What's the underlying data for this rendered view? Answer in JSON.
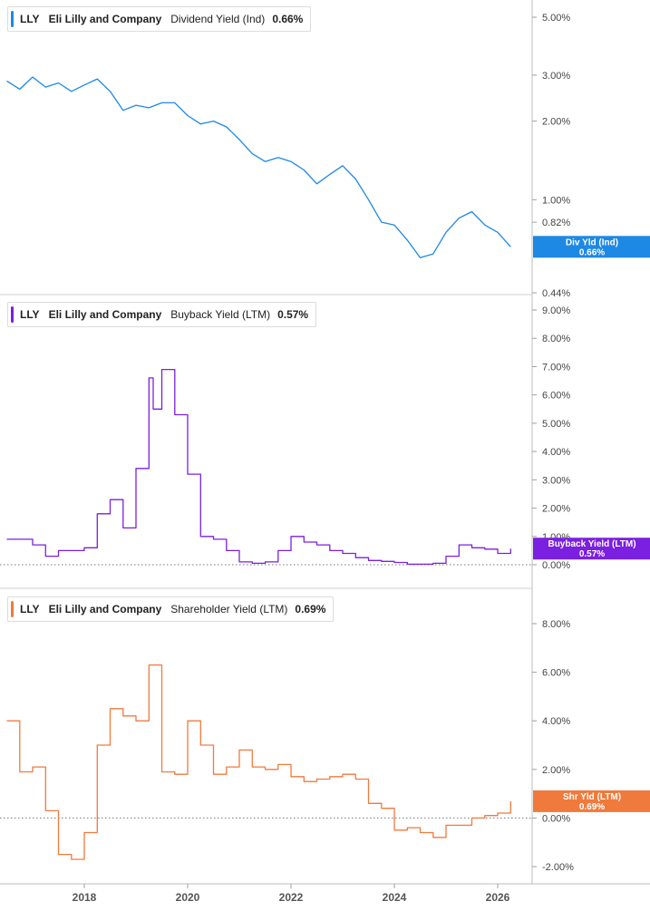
{
  "x_axis": {
    "ticks": [
      "2018",
      "2020",
      "2022",
      "2024",
      "2026"
    ]
  },
  "chart_data": [
    {
      "type": "line",
      "ticker": "LLY",
      "company": "Eli Lilly and Company",
      "metric": "Dividend Yield (Ind)",
      "value_label": "0.66%",
      "color": "#1e88e5",
      "flag": {
        "name": "Div Yld (Ind)",
        "value": "0.66%"
      },
      "y_scale": "log",
      "y_ticks": [
        "5.00%",
        "3.00%",
        "2.00%",
        "1.00%",
        "0.82%",
        "0.44%"
      ],
      "y_tick_values": [
        5.0,
        3.0,
        2.0,
        1.0,
        0.82,
        0.44
      ],
      "ylim": [
        0.44,
        5.8
      ],
      "zero_line": false,
      "series": [
        {
          "x": [
            "2016-07",
            "2016-10",
            "2017-01",
            "2017-04",
            "2017-07",
            "2017-10",
            "2018-01",
            "2018-04",
            "2018-07",
            "2018-10",
            "2019-01",
            "2019-04",
            "2019-07",
            "2019-10",
            "2020-01",
            "2020-04",
            "2020-07",
            "2020-10",
            "2021-01",
            "2021-04",
            "2021-07",
            "2021-10",
            "2022-01",
            "2022-04",
            "2022-07",
            "2022-10",
            "2023-01",
            "2023-04",
            "2023-07",
            "2023-10",
            "2024-01",
            "2024-04",
            "2024-07",
            "2024-10",
            "2025-01",
            "2025-04",
            "2025-07",
            "2025-10",
            "2026-01",
            "2026-04"
          ],
          "values": [
            2.85,
            2.65,
            2.95,
            2.7,
            2.8,
            2.6,
            2.75,
            2.9,
            2.6,
            2.2,
            2.3,
            2.25,
            2.35,
            2.35,
            2.1,
            1.95,
            2.0,
            1.9,
            1.7,
            1.5,
            1.4,
            1.45,
            1.4,
            1.3,
            1.15,
            1.25,
            1.35,
            1.2,
            1.0,
            0.82,
            0.8,
            0.7,
            0.6,
            0.62,
            0.75,
            0.85,
            0.9,
            0.8,
            0.75,
            0.66
          ]
        }
      ]
    },
    {
      "type": "line",
      "ticker": "LLY",
      "company": "Eli Lilly and Company",
      "metric": "Buyback Yield (LTM)",
      "value_label": "0.57%",
      "color": "#7b1fe0",
      "flag": {
        "name": "Buyback Yield (LTM)",
        "value": "0.57%"
      },
      "y_scale": "linear",
      "y_ticks": [
        "9.00%",
        "8.00%",
        "7.00%",
        "6.00%",
        "5.00%",
        "4.00%",
        "3.00%",
        "2.00%",
        "1.00%",
        "0.00%"
      ],
      "y_tick_values": [
        9,
        8,
        7,
        6,
        5,
        4,
        3,
        2,
        1,
        0
      ],
      "ylim": [
        0,
        9.3
      ],
      "zero_line": true,
      "series": [
        {
          "x": [
            "2016-07",
            "2017-01",
            "2017-04",
            "2017-07",
            "2017-10",
            "2018-01",
            "2018-04",
            "2018-07",
            "2018-10",
            "2019-01",
            "2019-04",
            "2019-05",
            "2019-07",
            "2019-10",
            "2020-01",
            "2020-04",
            "2020-07",
            "2020-10",
            "2021-01",
            "2021-04",
            "2021-07",
            "2021-10",
            "2022-01",
            "2022-04",
            "2022-07",
            "2022-10",
            "2023-01",
            "2023-04",
            "2023-07",
            "2023-10",
            "2024-01",
            "2024-04",
            "2024-07",
            "2024-10",
            "2025-01",
            "2025-04",
            "2025-07",
            "2025-10",
            "2026-01",
            "2026-04"
          ],
          "values": [
            0.9,
            0.7,
            0.3,
            0.5,
            0.5,
            0.6,
            1.8,
            2.3,
            1.3,
            3.4,
            6.6,
            5.5,
            6.9,
            5.3,
            3.2,
            1.0,
            0.9,
            0.5,
            0.1,
            0.05,
            0.1,
            0.5,
            1.0,
            0.8,
            0.7,
            0.5,
            0.4,
            0.25,
            0.15,
            0.12,
            0.08,
            0.02,
            0.02,
            0.05,
            0.3,
            0.7,
            0.6,
            0.55,
            0.4,
            0.57
          ]
        }
      ]
    },
    {
      "type": "line",
      "ticker": "LLY",
      "company": "Eli Lilly and Company",
      "metric": "Shareholder Yield (LTM)",
      "value_label": "0.69%",
      "color": "#f07a3c",
      "flag": {
        "name": "Shr Yld (LTM)",
        "value": "0.69%"
      },
      "y_scale": "linear",
      "y_ticks": [
        "8.00%",
        "6.00%",
        "4.00%",
        "2.00%",
        "0.00%",
        "-2.00%"
      ],
      "y_tick_values": [
        8,
        6,
        4,
        2,
        0,
        -2
      ],
      "ylim": [
        -2.3,
        9.2
      ],
      "zero_line": true,
      "series": [
        {
          "x": [
            "2016-07",
            "2016-10",
            "2017-01",
            "2017-04",
            "2017-07",
            "2017-10",
            "2018-01",
            "2018-04",
            "2018-07",
            "2018-10",
            "2019-01",
            "2019-04",
            "2019-07",
            "2019-10",
            "2020-01",
            "2020-04",
            "2020-07",
            "2020-10",
            "2021-01",
            "2021-04",
            "2021-07",
            "2021-10",
            "2022-01",
            "2022-04",
            "2022-07",
            "2022-10",
            "2023-01",
            "2023-04",
            "2023-07",
            "2023-10",
            "2024-01",
            "2024-04",
            "2024-07",
            "2024-10",
            "2025-01",
            "2025-04",
            "2025-07",
            "2025-10",
            "2026-01",
            "2026-04"
          ],
          "values": [
            4.0,
            1.9,
            2.1,
            0.3,
            -1.5,
            -1.7,
            -0.6,
            3.0,
            4.5,
            4.2,
            4.0,
            6.3,
            1.9,
            1.8,
            4.0,
            3.0,
            1.8,
            2.1,
            2.8,
            2.1,
            2.0,
            2.2,
            1.7,
            1.5,
            1.6,
            1.7,
            1.8,
            1.6,
            0.6,
            0.4,
            -0.5,
            -0.4,
            -0.6,
            -0.8,
            -0.3,
            -0.3,
            0.0,
            0.1,
            0.2,
            0.69
          ]
        }
      ]
    }
  ]
}
